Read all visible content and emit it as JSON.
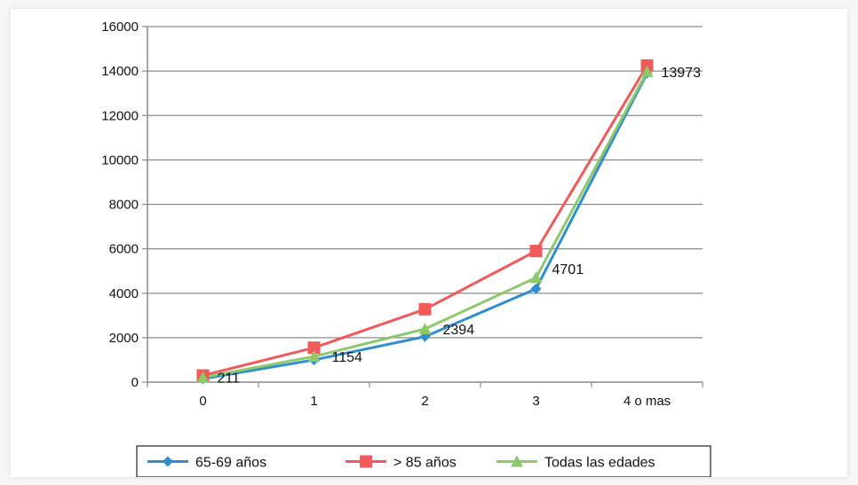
{
  "chart_data": {
    "type": "line",
    "categories": [
      "0",
      "1",
      "2",
      "3",
      "4 o mas"
    ],
    "ylim": [
      0,
      16000
    ],
    "yticks": [
      0,
      2000,
      4000,
      6000,
      8000,
      10000,
      12000,
      14000,
      16000
    ],
    "grid": "horizontal",
    "legend_position": "bottom",
    "series": [
      {
        "name": "65-69 años",
        "values": [
          150,
          1000,
          2050,
          4200,
          13900
        ],
        "color": "#2e8ecf",
        "marker": "diamond"
      },
      {
        "name": "> 85 años",
        "values": [
          300,
          1550,
          3280,
          5900,
          14250
        ],
        "color": "#f05a5a",
        "marker": "square"
      },
      {
        "name": "Todas las edades",
        "values": [
          211,
          1154,
          2394,
          4701,
          13973
        ],
        "color": "#8dc86b",
        "marker": "triangle"
      }
    ],
    "data_labels": [
      "211",
      "1154",
      "2394",
      "4701",
      "13973"
    ]
  }
}
